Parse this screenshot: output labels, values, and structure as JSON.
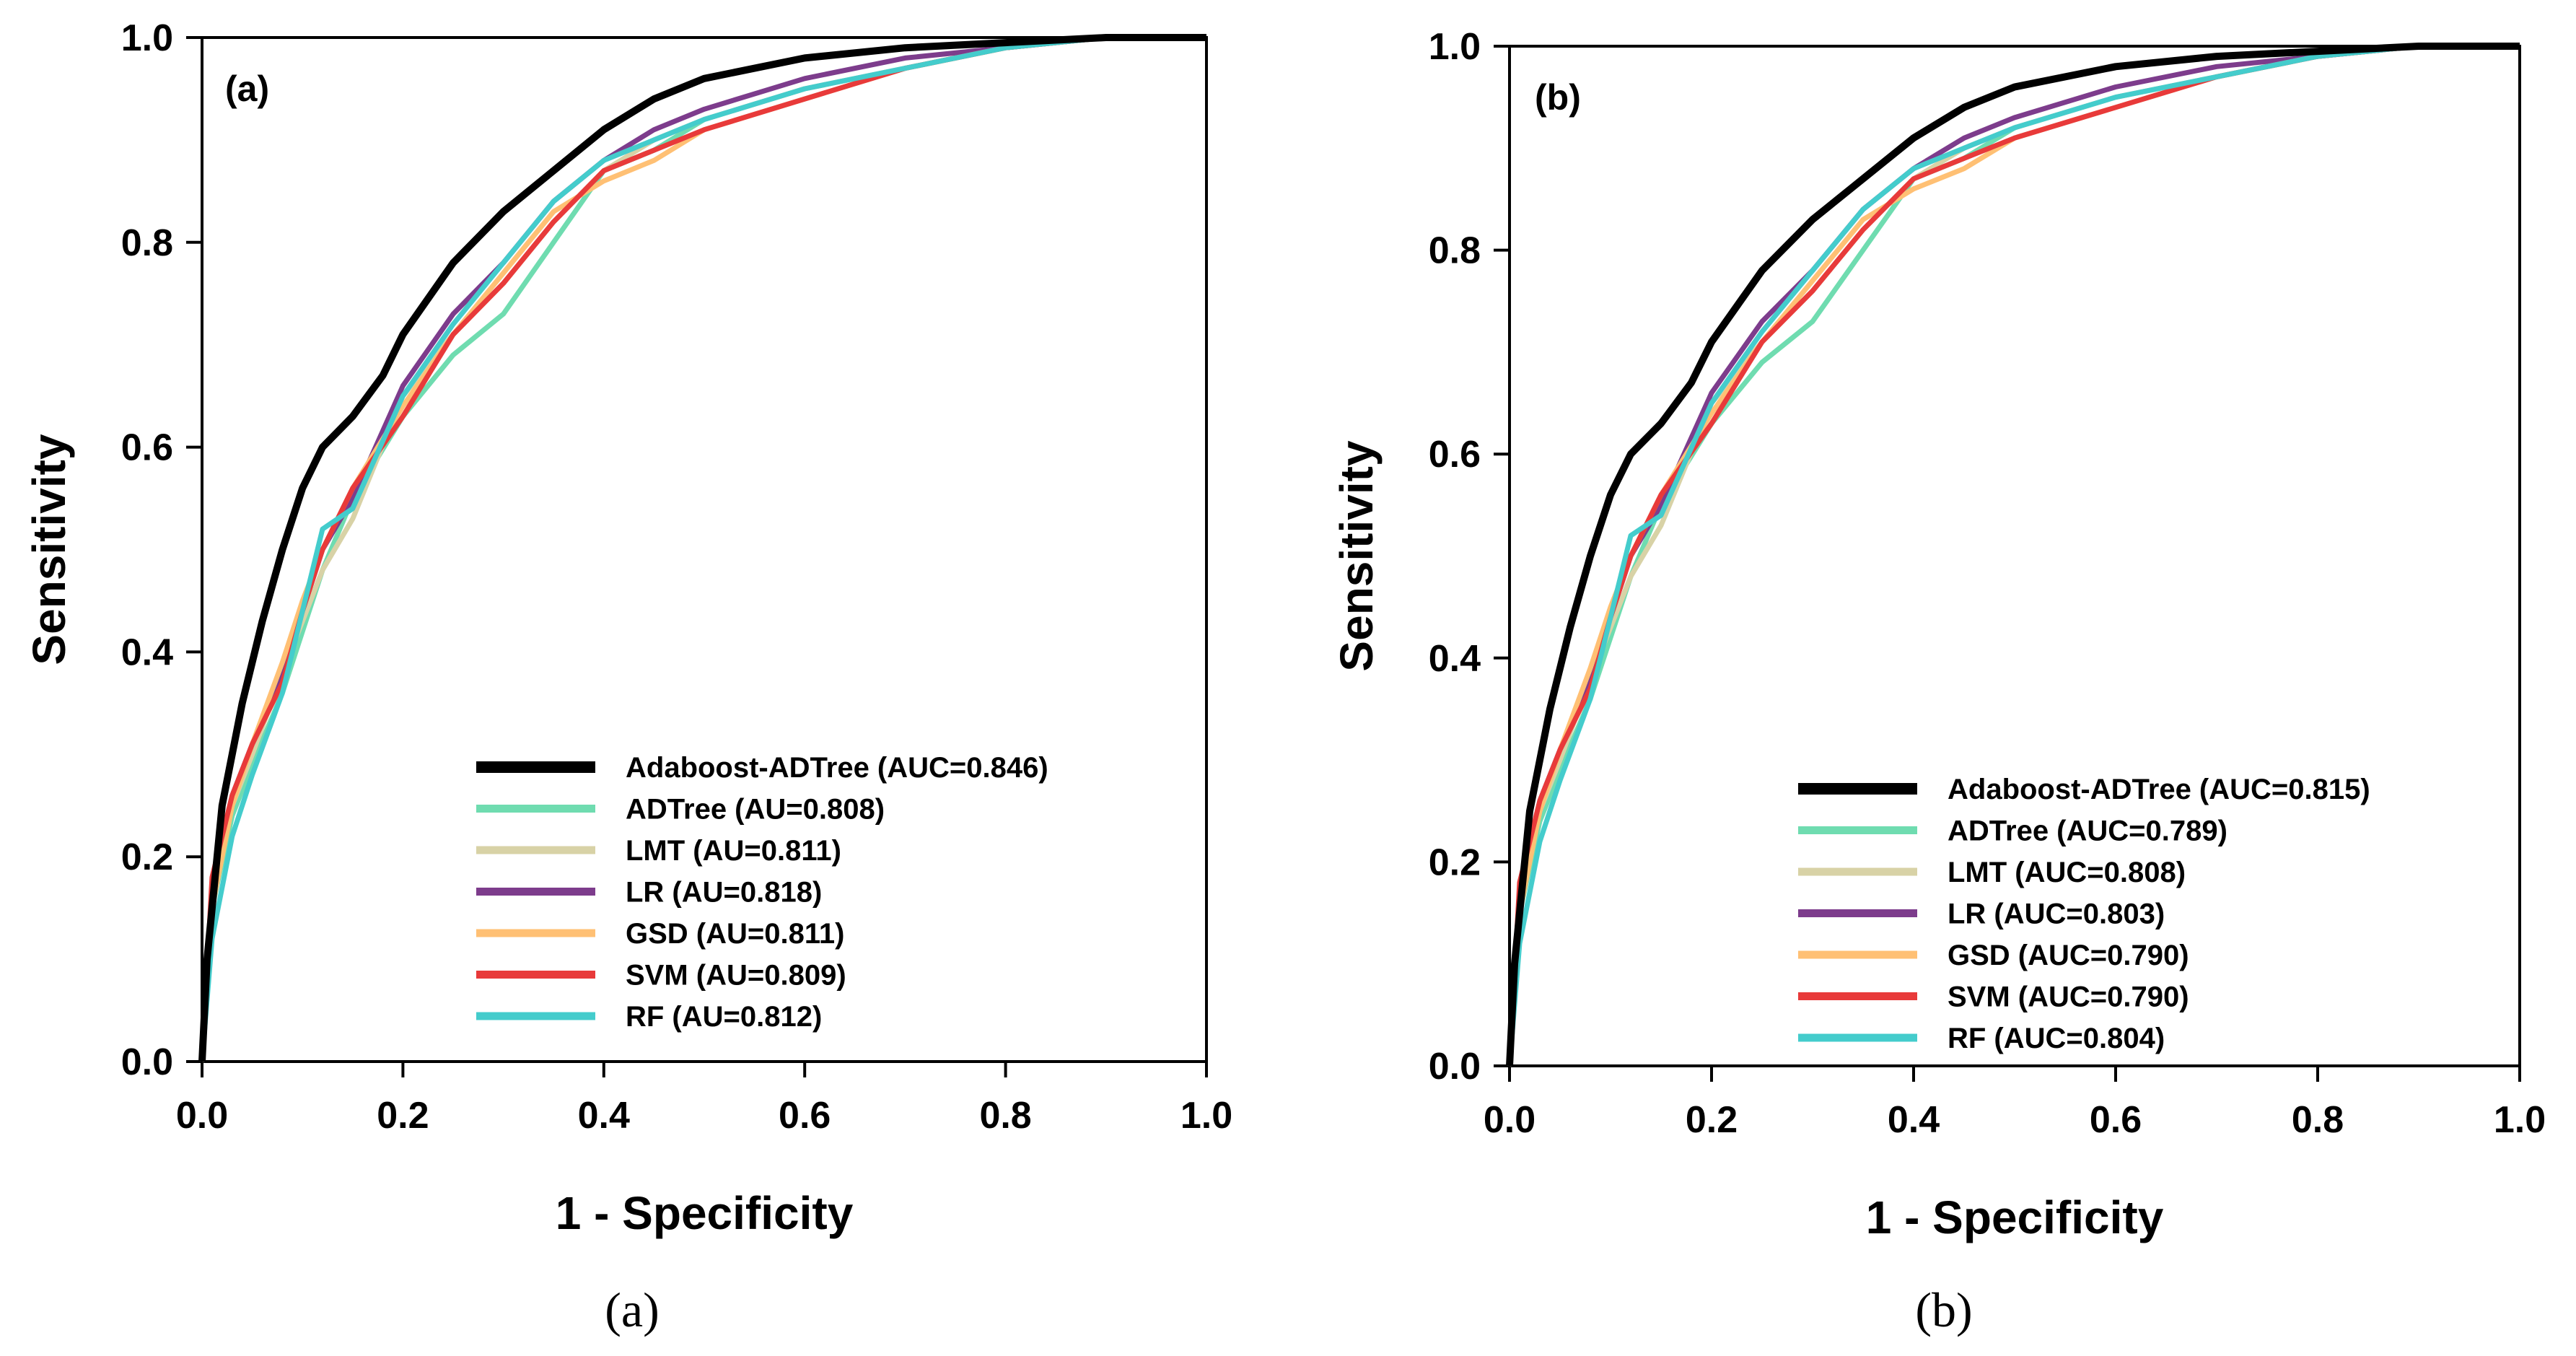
{
  "chart_data": [
    {
      "type": "line",
      "panel_tag": "(a)",
      "caption": "(a)",
      "xlabel": "1 - Specificity",
      "ylabel": "Sensitivity",
      "xlim": [
        0,
        1
      ],
      "ylim": [
        0,
        1
      ],
      "x_ticks": [
        "0.0",
        "0.2",
        "0.4",
        "0.6",
        "0.8",
        "1.0"
      ],
      "y_ticks": [
        "0.0",
        "0.2",
        "0.4",
        "0.6",
        "0.8",
        "1.0"
      ],
      "legend_position": "bottom-right",
      "series": [
        {
          "name": "Adaboost-ADTree (AUC=0.846)",
          "color": "#000000",
          "x": [
            0,
            0.005,
            0.02,
            0.04,
            0.06,
            0.08,
            0.1,
            0.12,
            0.15,
            0.18,
            0.2,
            0.25,
            0.3,
            0.35,
            0.4,
            0.45,
            0.5,
            0.6,
            0.7,
            0.8,
            0.9,
            1.0
          ],
          "y": [
            0,
            0.1,
            0.25,
            0.35,
            0.43,
            0.5,
            0.56,
            0.6,
            0.63,
            0.67,
            0.71,
            0.78,
            0.83,
            0.87,
            0.91,
            0.94,
            0.96,
            0.98,
            0.99,
            0.995,
            1.0,
            1.0
          ]
        },
        {
          "name": "ADTree (AU=0.808)",
          "color": "#6fdcb0",
          "x": [
            0,
            0.01,
            0.03,
            0.05,
            0.08,
            0.1,
            0.12,
            0.15,
            0.2,
            0.25,
            0.3,
            0.35,
            0.4,
            0.45,
            0.5,
            0.6,
            0.7,
            0.8,
            0.9,
            1.0
          ],
          "y": [
            0,
            0.15,
            0.24,
            0.29,
            0.36,
            0.42,
            0.48,
            0.55,
            0.63,
            0.69,
            0.73,
            0.8,
            0.87,
            0.89,
            0.92,
            0.95,
            0.97,
            0.99,
            1.0,
            1.0
          ]
        },
        {
          "name": "LMT (AU=0.811)",
          "color": "#d8d2a6",
          "x": [
            0,
            0.01,
            0.03,
            0.05,
            0.08,
            0.1,
            0.12,
            0.15,
            0.2,
            0.25,
            0.3,
            0.35,
            0.4,
            0.45,
            0.5,
            0.6,
            0.7,
            0.8,
            0.9,
            1.0
          ],
          "y": [
            0,
            0.16,
            0.25,
            0.3,
            0.38,
            0.43,
            0.48,
            0.53,
            0.65,
            0.71,
            0.76,
            0.82,
            0.87,
            0.9,
            0.92,
            0.95,
            0.97,
            0.99,
            1.0,
            1.0
          ]
        },
        {
          "name": "LR (AU=0.818)",
          "color": "#7d3c8c",
          "x": [
            0,
            0.01,
            0.03,
            0.05,
            0.08,
            0.1,
            0.12,
            0.15,
            0.2,
            0.25,
            0.3,
            0.35,
            0.4,
            0.45,
            0.5,
            0.6,
            0.7,
            0.8,
            0.9,
            1.0
          ],
          "y": [
            0,
            0.17,
            0.26,
            0.31,
            0.38,
            0.44,
            0.5,
            0.55,
            0.66,
            0.73,
            0.78,
            0.84,
            0.88,
            0.91,
            0.93,
            0.96,
            0.98,
            0.99,
            1.0,
            1.0
          ]
        },
        {
          "name": "GSD (AU=0.811)",
          "color": "#ffc074",
          "x": [
            0,
            0.01,
            0.03,
            0.05,
            0.08,
            0.1,
            0.12,
            0.15,
            0.2,
            0.25,
            0.3,
            0.35,
            0.4,
            0.45,
            0.5,
            0.6,
            0.7,
            0.8,
            0.9,
            1.0
          ],
          "y": [
            0,
            0.15,
            0.25,
            0.31,
            0.39,
            0.45,
            0.5,
            0.56,
            0.64,
            0.71,
            0.77,
            0.83,
            0.86,
            0.88,
            0.91,
            0.94,
            0.97,
            0.99,
            1.0,
            1.0
          ]
        },
        {
          "name": "SVM (AU=0.809)",
          "color": "#e83a3a",
          "x": [
            0,
            0.01,
            0.03,
            0.05,
            0.08,
            0.1,
            0.12,
            0.15,
            0.2,
            0.25,
            0.3,
            0.35,
            0.4,
            0.45,
            0.5,
            0.6,
            0.7,
            0.8,
            0.9,
            1.0
          ],
          "y": [
            0,
            0.18,
            0.26,
            0.31,
            0.37,
            0.44,
            0.5,
            0.56,
            0.63,
            0.71,
            0.76,
            0.82,
            0.87,
            0.89,
            0.91,
            0.94,
            0.97,
            0.99,
            1.0,
            1.0
          ]
        },
        {
          "name": "RF (AU=0.812)",
          "color": "#44cccc",
          "x": [
            0,
            0.01,
            0.03,
            0.05,
            0.08,
            0.1,
            0.12,
            0.15,
            0.2,
            0.25,
            0.3,
            0.35,
            0.4,
            0.45,
            0.5,
            0.6,
            0.7,
            0.8,
            0.9,
            1.0
          ],
          "y": [
            0,
            0.12,
            0.22,
            0.28,
            0.36,
            0.44,
            0.52,
            0.54,
            0.65,
            0.72,
            0.78,
            0.84,
            0.88,
            0.9,
            0.92,
            0.95,
            0.97,
            0.99,
            1.0,
            1.0
          ]
        }
      ]
    },
    {
      "type": "line",
      "panel_tag": "(b)",
      "caption": "(b)",
      "xlabel": "1 - Specificity",
      "ylabel": "Sensitivity",
      "xlim": [
        0,
        1
      ],
      "ylim": [
        0,
        1
      ],
      "x_ticks": [
        "0.0",
        "0.2",
        "0.4",
        "0.6",
        "0.8",
        "1.0"
      ],
      "y_ticks": [
        "0.0",
        "0.2",
        "0.4",
        "0.6",
        "0.8",
        "1.0"
      ],
      "legend_position": "bottom-right",
      "series": [
        {
          "name": "Adaboost-ADTree (AUC=0.815)",
          "color": "#000000",
          "x": [
            0,
            0.005,
            0.02,
            0.04,
            0.06,
            0.08,
            0.1,
            0.12,
            0.15,
            0.18,
            0.2,
            0.25,
            0.3,
            0.35,
            0.4,
            0.45,
            0.5,
            0.6,
            0.7,
            0.8,
            0.9,
            1.0
          ],
          "y": [
            0,
            0.1,
            0.25,
            0.35,
            0.43,
            0.5,
            0.56,
            0.6,
            0.63,
            0.67,
            0.71,
            0.78,
            0.83,
            0.87,
            0.91,
            0.94,
            0.96,
            0.98,
            0.99,
            0.995,
            1.0,
            1.0
          ]
        },
        {
          "name": "ADTree (AUC=0.789)",
          "color": "#6fdcb0",
          "x": [
            0,
            0.01,
            0.03,
            0.05,
            0.08,
            0.1,
            0.12,
            0.15,
            0.2,
            0.25,
            0.3,
            0.35,
            0.4,
            0.45,
            0.5,
            0.6,
            0.7,
            0.8,
            0.9,
            1.0
          ],
          "y": [
            0,
            0.15,
            0.24,
            0.29,
            0.36,
            0.42,
            0.48,
            0.55,
            0.63,
            0.69,
            0.73,
            0.8,
            0.87,
            0.89,
            0.92,
            0.95,
            0.97,
            0.99,
            1.0,
            1.0
          ]
        },
        {
          "name": "LMT (AUC=0.808)",
          "color": "#d8d2a6",
          "x": [
            0,
            0.01,
            0.03,
            0.05,
            0.08,
            0.1,
            0.12,
            0.15,
            0.2,
            0.25,
            0.3,
            0.35,
            0.4,
            0.45,
            0.5,
            0.6,
            0.7,
            0.8,
            0.9,
            1.0
          ],
          "y": [
            0,
            0.16,
            0.25,
            0.3,
            0.38,
            0.43,
            0.48,
            0.53,
            0.65,
            0.71,
            0.76,
            0.82,
            0.87,
            0.9,
            0.92,
            0.95,
            0.97,
            0.99,
            1.0,
            1.0
          ]
        },
        {
          "name": "LR (AUC=0.803)",
          "color": "#7d3c8c",
          "x": [
            0,
            0.01,
            0.03,
            0.05,
            0.08,
            0.1,
            0.12,
            0.15,
            0.2,
            0.25,
            0.3,
            0.35,
            0.4,
            0.45,
            0.5,
            0.6,
            0.7,
            0.8,
            0.9,
            1.0
          ],
          "y": [
            0,
            0.17,
            0.26,
            0.31,
            0.38,
            0.44,
            0.5,
            0.55,
            0.66,
            0.73,
            0.78,
            0.84,
            0.88,
            0.91,
            0.93,
            0.96,
            0.98,
            0.99,
            1.0,
            1.0
          ]
        },
        {
          "name": "GSD (AUC=0.790)",
          "color": "#ffc074",
          "x": [
            0,
            0.01,
            0.03,
            0.05,
            0.08,
            0.1,
            0.12,
            0.15,
            0.2,
            0.25,
            0.3,
            0.35,
            0.4,
            0.45,
            0.5,
            0.6,
            0.7,
            0.8,
            0.9,
            1.0
          ],
          "y": [
            0,
            0.15,
            0.25,
            0.31,
            0.39,
            0.45,
            0.5,
            0.56,
            0.64,
            0.71,
            0.77,
            0.83,
            0.86,
            0.88,
            0.91,
            0.94,
            0.97,
            0.99,
            1.0,
            1.0
          ]
        },
        {
          "name": "SVM (AUC=0.790)",
          "color": "#e83a3a",
          "x": [
            0,
            0.01,
            0.03,
            0.05,
            0.08,
            0.1,
            0.12,
            0.15,
            0.2,
            0.25,
            0.3,
            0.35,
            0.4,
            0.45,
            0.5,
            0.6,
            0.7,
            0.8,
            0.9,
            1.0
          ],
          "y": [
            0,
            0.18,
            0.26,
            0.31,
            0.37,
            0.44,
            0.5,
            0.56,
            0.63,
            0.71,
            0.76,
            0.82,
            0.87,
            0.89,
            0.91,
            0.94,
            0.97,
            0.99,
            1.0,
            1.0
          ]
        },
        {
          "name": "RF (AUC=0.804)",
          "color": "#44cccc",
          "x": [
            0,
            0.01,
            0.03,
            0.05,
            0.08,
            0.1,
            0.12,
            0.15,
            0.2,
            0.25,
            0.3,
            0.35,
            0.4,
            0.45,
            0.5,
            0.6,
            0.7,
            0.8,
            0.9,
            1.0
          ],
          "y": [
            0,
            0.12,
            0.22,
            0.28,
            0.36,
            0.44,
            0.52,
            0.54,
            0.65,
            0.72,
            0.78,
            0.84,
            0.88,
            0.9,
            0.92,
            0.95,
            0.97,
            0.99,
            1.0,
            1.0
          ]
        }
      ]
    }
  ]
}
